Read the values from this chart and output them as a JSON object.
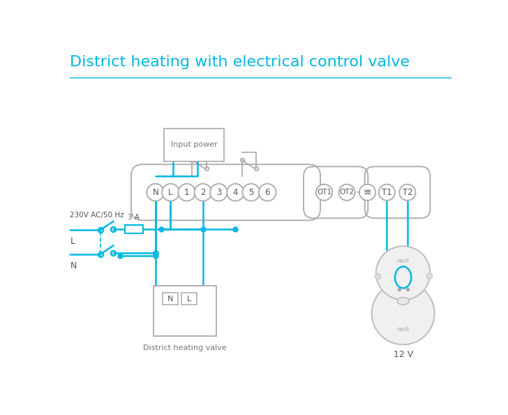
{
  "title": "District heating with electrical control valve",
  "title_color": "#00b8e0",
  "title_fontsize": 16,
  "bg_color": "#ffffff",
  "wire_color": "#00b8e0",
  "gray_color": "#aaaaaa",
  "dark_gray": "#666666",
  "terminal_labels": [
    "N",
    "L",
    "1",
    "2",
    "3",
    "4",
    "5",
    "6"
  ],
  "ot_labels": [
    "OT1",
    "OT2"
  ],
  "right_labels": [
    "T1",
    "T2"
  ],
  "label_230v": "230V AC/50 Hz",
  "label_L": "L",
  "label_N": "N",
  "label_3A": "3 A",
  "label_valve": "District heating valve",
  "label_12v": "12 V",
  "label_input_power": "Input power",
  "label_nest_small": "nest"
}
